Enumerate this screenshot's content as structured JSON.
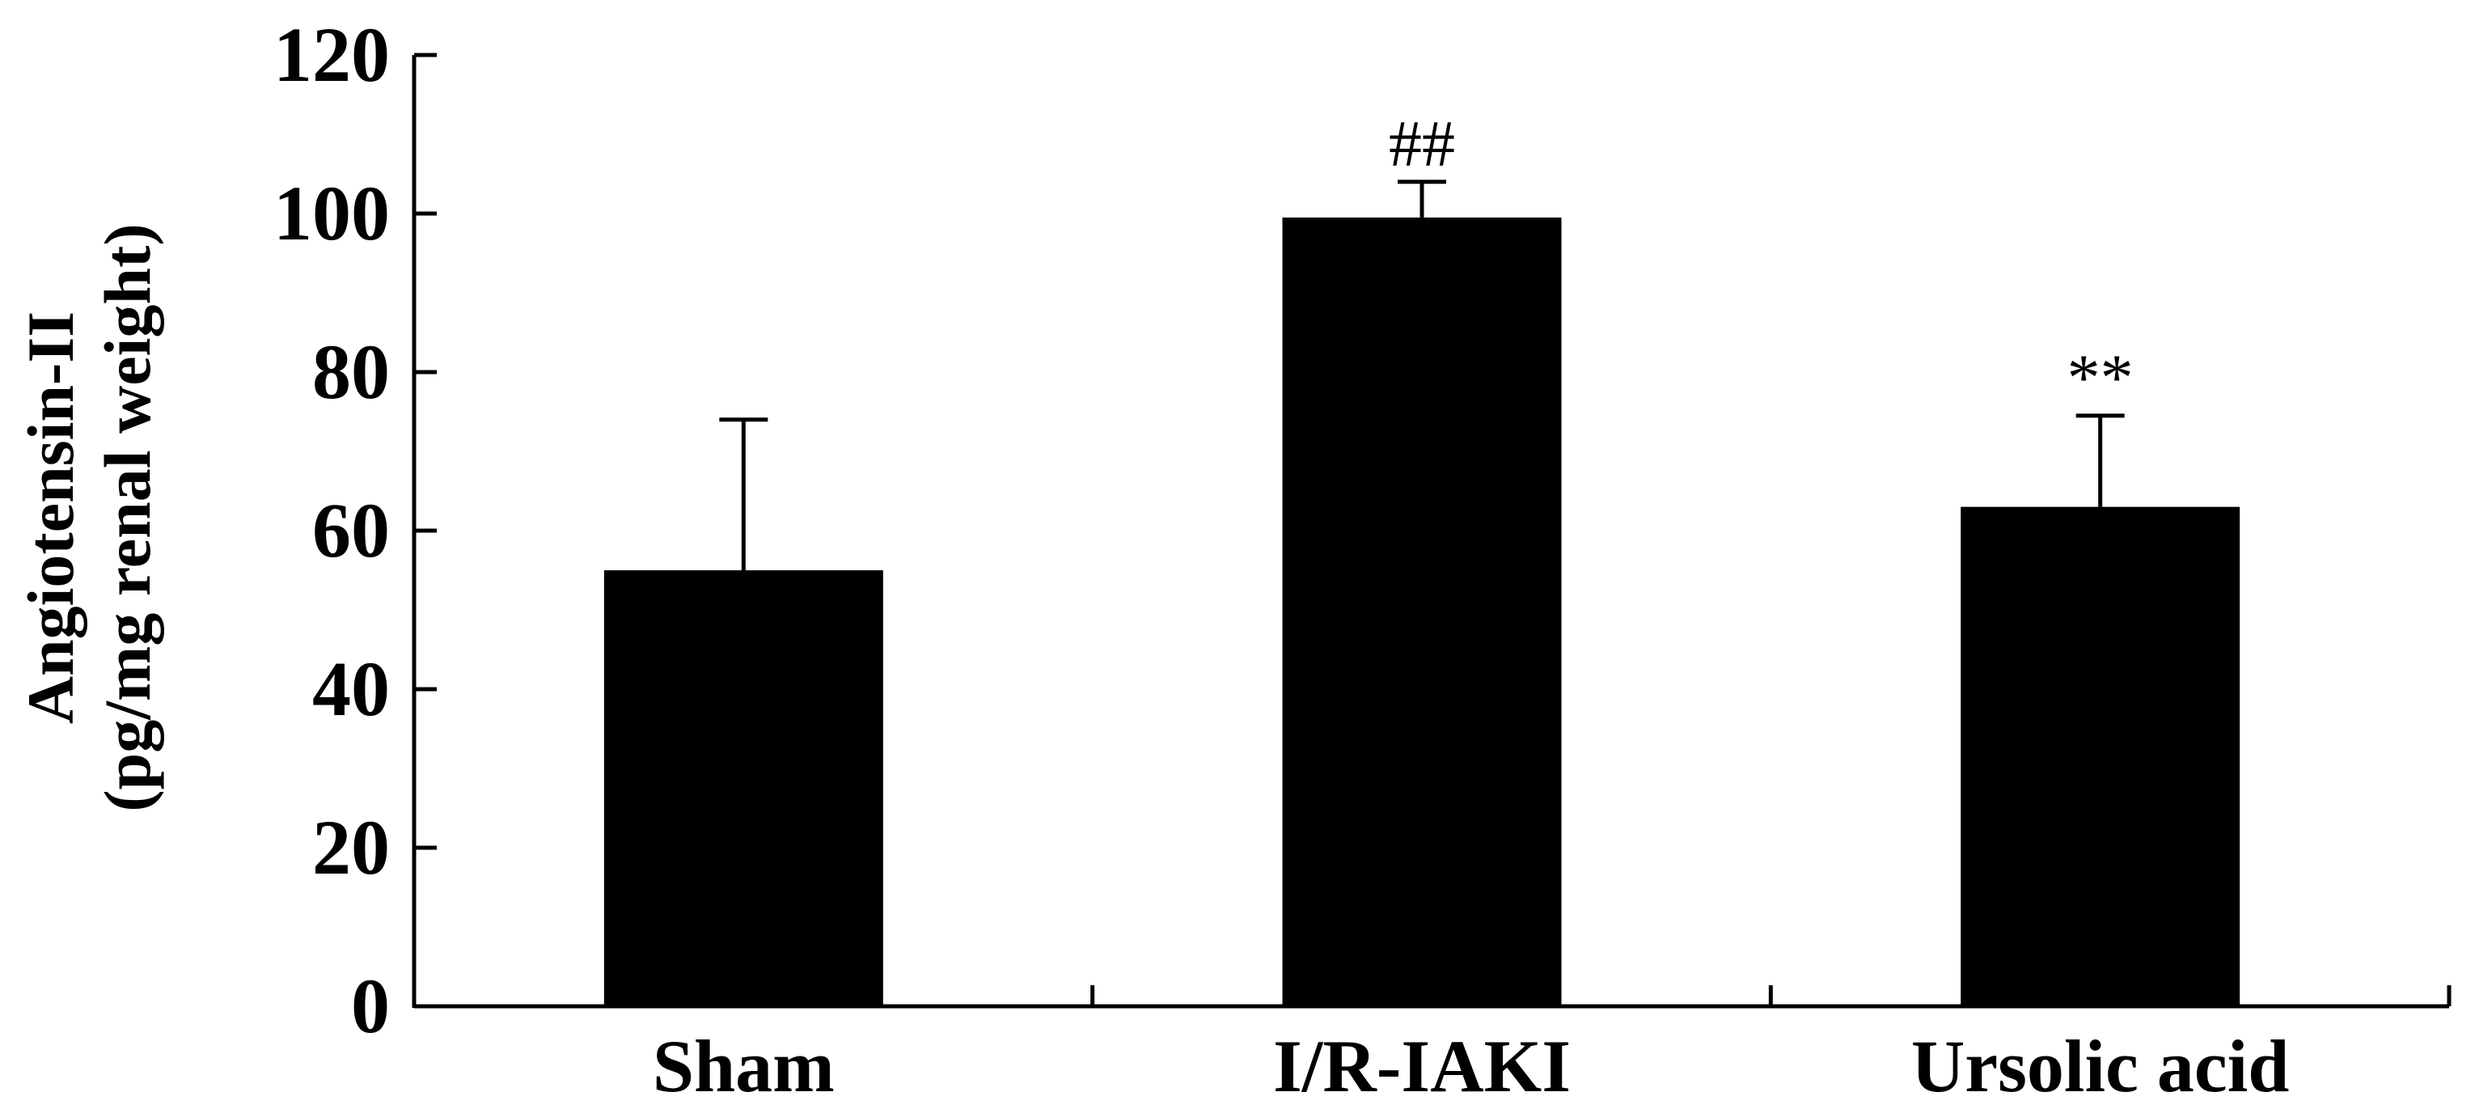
{
  "chart_data": {
    "type": "bar",
    "title": "",
    "xlabel": "",
    "ylabel_lines": [
      "Angiotensin-II",
      "(pg/mg renal weight)"
    ],
    "categories": [
      "Sham",
      "I/R-IAKI",
      "Ursolic acid"
    ],
    "values": [
      55,
      99.5,
      63
    ],
    "error_upper": [
      74,
      104,
      74.5
    ],
    "annotations": [
      "",
      "##",
      "**"
    ],
    "ylim": [
      0,
      120
    ],
    "yticks": [
      "0",
      "20",
      "40",
      "60",
      "80",
      "100",
      "120"
    ],
    "grid": false,
    "legend": "none",
    "bar_color": "#000000"
  }
}
